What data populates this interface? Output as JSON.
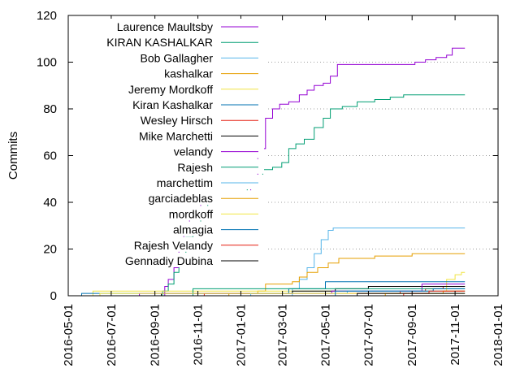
{
  "chart_data": {
    "type": "line",
    "ylabel": "Commits",
    "xlabel": "",
    "title": "",
    "ylim": [
      0,
      120
    ],
    "yticks": [
      0,
      20,
      40,
      60,
      80,
      100,
      120
    ],
    "xlim": [
      "2016-05-01",
      "2018-01-01"
    ],
    "xticks": [
      "2016-05-01",
      "2016-07-01",
      "2016-09-01",
      "2016-11-01",
      "2017-01-01",
      "2017-03-01",
      "2017-05-01",
      "2017-07-01",
      "2017-09-01",
      "2017-11-01",
      "2018-01-01"
    ],
    "grid": "horizontal dotted grid lines",
    "legend_position": "top-left",
    "series": [
      {
        "name": "Laurence Maultsby",
        "color": "#9400d3",
        "points": [
          [
            "2016-09-10",
            0
          ],
          [
            "2016-09-15",
            4
          ],
          [
            "2016-09-20",
            7
          ],
          [
            "2016-09-28",
            12
          ],
          [
            "2016-10-05",
            20
          ],
          [
            "2016-10-12",
            27
          ],
          [
            "2016-10-20",
            33
          ],
          [
            "2016-10-28",
            38
          ],
          [
            "2016-11-05",
            41
          ],
          [
            "2016-11-20",
            42
          ],
          [
            "2016-12-15",
            43
          ],
          [
            "2017-01-05",
            44
          ],
          [
            "2017-01-15",
            50
          ],
          [
            "2017-01-25",
            63
          ],
          [
            "2017-02-05",
            76
          ],
          [
            "2017-02-15",
            80
          ],
          [
            "2017-02-25",
            82
          ],
          [
            "2017-03-10",
            83
          ],
          [
            "2017-03-25",
            86
          ],
          [
            "2017-04-05",
            88
          ],
          [
            "2017-04-15",
            90
          ],
          [
            "2017-04-28",
            91
          ],
          [
            "2017-05-08",
            94
          ],
          [
            "2017-05-18",
            99
          ],
          [
            "2017-06-30",
            99
          ],
          [
            "2017-09-05",
            100
          ],
          [
            "2017-09-20",
            101
          ],
          [
            "2017-10-05",
            102
          ],
          [
            "2017-10-20",
            103
          ],
          [
            "2017-10-28",
            106
          ],
          [
            "2017-11-15",
            106
          ]
        ]
      },
      {
        "name": "KIRAN KASHALKAR",
        "color": "#009e73",
        "points": [
          [
            "2016-09-05",
            0
          ],
          [
            "2016-09-12",
            2
          ],
          [
            "2016-09-20",
            5
          ],
          [
            "2016-09-28",
            10
          ],
          [
            "2016-10-05",
            18
          ],
          [
            "2016-10-15",
            25
          ],
          [
            "2016-10-25",
            31
          ],
          [
            "2016-11-05",
            37
          ],
          [
            "2016-11-15",
            40
          ],
          [
            "2016-11-25",
            42
          ],
          [
            "2016-12-20",
            44
          ],
          [
            "2017-01-10",
            46
          ],
          [
            "2017-01-20",
            50
          ],
          [
            "2017-02-01",
            54
          ],
          [
            "2017-02-15",
            55
          ],
          [
            "2017-02-28",
            57
          ],
          [
            "2017-03-10",
            63
          ],
          [
            "2017-03-20",
            65
          ],
          [
            "2017-04-01",
            67
          ],
          [
            "2017-04-15",
            72
          ],
          [
            "2017-04-28",
            76
          ],
          [
            "2017-05-08",
            80
          ],
          [
            "2017-05-25",
            81
          ],
          [
            "2017-06-15",
            83
          ],
          [
            "2017-07-10",
            84
          ],
          [
            "2017-08-01",
            85
          ],
          [
            "2017-08-20",
            86
          ],
          [
            "2017-11-15",
            86
          ]
        ]
      },
      {
        "name": "Bob Gallagher",
        "color": "#56b4e9",
        "points": [
          [
            "2017-03-08",
            0
          ],
          [
            "2017-03-15",
            3
          ],
          [
            "2017-03-25",
            7
          ],
          [
            "2017-04-05",
            12
          ],
          [
            "2017-04-15",
            18
          ],
          [
            "2017-04-25",
            24
          ],
          [
            "2017-05-05",
            28
          ],
          [
            "2017-05-12",
            29
          ],
          [
            "2017-11-15",
            29
          ]
        ]
      },
      {
        "name": "kashalkar",
        "color": "#e69f00",
        "points": [
          [
            "2016-12-10",
            0
          ],
          [
            "2016-12-15",
            1
          ],
          [
            "2017-01-25",
            2
          ],
          [
            "2017-02-05",
            5
          ],
          [
            "2017-03-15",
            6
          ],
          [
            "2017-03-25",
            8
          ],
          [
            "2017-04-05",
            10
          ],
          [
            "2017-04-20",
            12
          ],
          [
            "2017-05-05",
            14
          ],
          [
            "2017-05-20",
            16
          ],
          [
            "2017-07-10",
            17
          ],
          [
            "2017-09-01",
            18
          ],
          [
            "2017-11-15",
            18
          ]
        ]
      },
      {
        "name": "Jeremy Mordkoff",
        "color": "#f0e442",
        "points": [
          [
            "2016-05-25",
            0
          ],
          [
            "2016-06-05",
            2
          ],
          [
            "2017-10-01",
            2
          ],
          [
            "2017-10-20",
            7
          ],
          [
            "2017-11-01",
            9
          ],
          [
            "2017-11-10",
            10
          ],
          [
            "2017-11-15",
            10
          ]
        ]
      },
      {
        "name": "Kiran Kashalkar",
        "color": "#0072b2",
        "points": [
          [
            "2016-05-15",
            0
          ],
          [
            "2016-05-20",
            1
          ],
          [
            "2017-01-20",
            1
          ],
          [
            "2017-03-10",
            3
          ],
          [
            "2017-05-01",
            6
          ],
          [
            "2017-11-15",
            6
          ]
        ]
      },
      {
        "name": "Wesley Hirsch",
        "color": "#e51e10",
        "points": [
          [
            "2016-11-01",
            0
          ],
          [
            "2016-11-10",
            1
          ],
          [
            "2017-07-10",
            1
          ],
          [
            "2017-08-15",
            2
          ],
          [
            "2017-09-20",
            3
          ],
          [
            "2017-10-15",
            4
          ],
          [
            "2017-11-15",
            4
          ]
        ]
      },
      {
        "name": "Mike Marchetti",
        "color": "#000000",
        "points": [
          [
            "2016-09-01",
            0
          ],
          [
            "2016-09-10",
            1
          ],
          [
            "2017-03-15",
            2
          ],
          [
            "2017-05-15",
            3
          ],
          [
            "2017-07-01",
            4
          ],
          [
            "2017-09-01",
            4
          ],
          [
            "2017-11-15",
            4
          ]
        ]
      },
      {
        "name": "velandy",
        "color": "#9400d3",
        "points": [
          [
            "2016-08-01",
            0
          ],
          [
            "2016-08-10",
            1
          ],
          [
            "2017-05-10",
            2
          ],
          [
            "2017-09-15",
            5
          ],
          [
            "2017-11-15",
            5
          ]
        ]
      },
      {
        "name": "Rajesh",
        "color": "#009e73",
        "points": [
          [
            "2016-10-20",
            0
          ],
          [
            "2016-10-25",
            3
          ],
          [
            "2017-11-15",
            3
          ]
        ]
      },
      {
        "name": "marchettim",
        "color": "#56b4e9",
        "points": [
          [
            "2017-01-10",
            0
          ],
          [
            "2017-01-15",
            1
          ],
          [
            "2017-06-01",
            2
          ],
          [
            "2017-11-15",
            2
          ]
        ]
      },
      {
        "name": "garciadeblas",
        "color": "#e69f00",
        "points": [
          [
            "2017-07-20",
            0
          ],
          [
            "2017-07-25",
            1
          ],
          [
            "2017-10-15",
            2
          ],
          [
            "2017-11-15",
            2
          ]
        ]
      },
      {
        "name": "mordkoff",
        "color": "#f0e442",
        "points": [
          [
            "2016-06-10",
            0
          ],
          [
            "2016-06-15",
            1
          ],
          [
            "2017-11-15",
            1
          ]
        ]
      },
      {
        "name": "almagia",
        "color": "#0072b2",
        "points": [
          [
            "2017-05-10",
            0
          ],
          [
            "2017-05-15",
            2
          ],
          [
            "2017-10-01",
            3
          ],
          [
            "2017-11-15",
            3
          ]
        ]
      },
      {
        "name": "Rajesh Velandy",
        "color": "#e51e10",
        "points": [
          [
            "2017-08-15",
            0
          ],
          [
            "2017-08-20",
            1
          ],
          [
            "2017-09-25",
            2
          ],
          [
            "2017-11-15",
            2
          ]
        ]
      },
      {
        "name": "Gennadiy Dubina",
        "color": "#000000",
        "points": [
          [
            "2017-06-10",
            0
          ],
          [
            "2017-06-15",
            1
          ],
          [
            "2017-11-15",
            1
          ]
        ]
      }
    ]
  }
}
